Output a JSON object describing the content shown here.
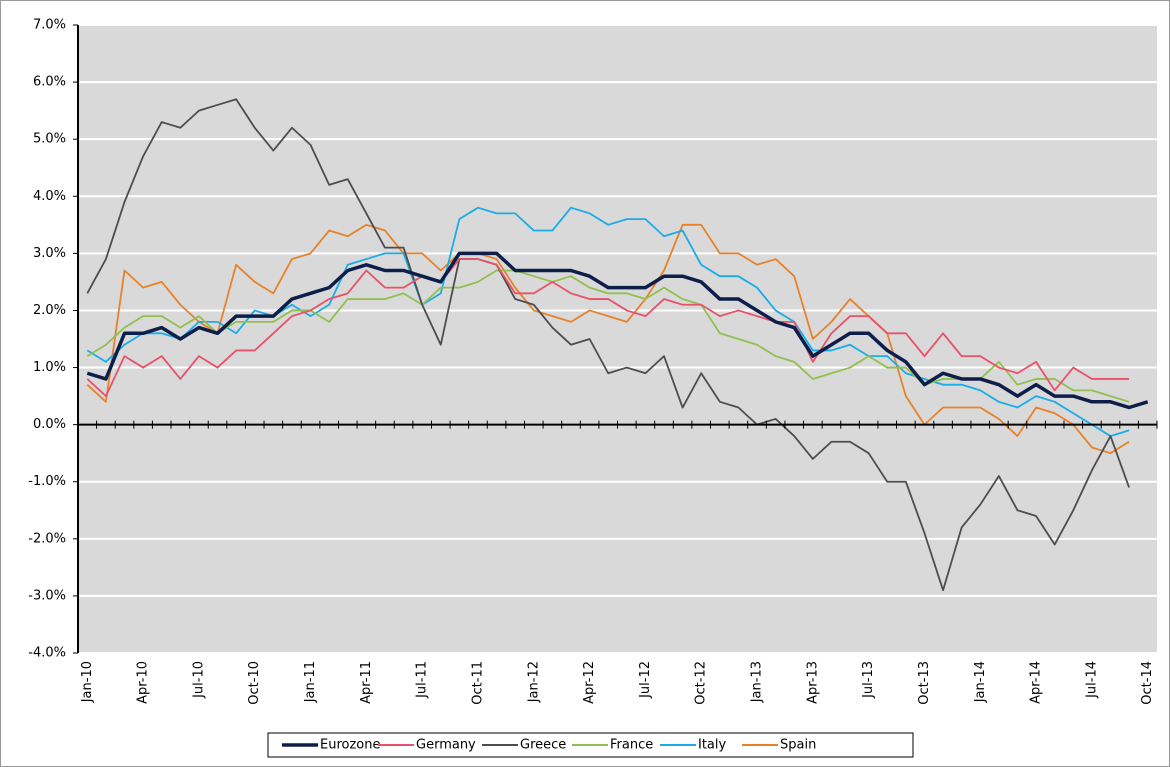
{
  "chart_data": {
    "type": "line",
    "categories": [
      "Jan-10",
      null,
      null,
      "Apr-10",
      null,
      null,
      "Jul-10",
      null,
      null,
      "Oct-10",
      null,
      null,
      "Jan-11",
      null,
      null,
      "Apr-11",
      null,
      null,
      "Jul-11",
      null,
      null,
      "Oct-11",
      null,
      null,
      "Jan-12",
      null,
      null,
      "Apr-12",
      null,
      null,
      "Jul-12",
      null,
      null,
      "Oct-12",
      null,
      null,
      "Jan-13",
      null,
      null,
      "Apr-13",
      null,
      null,
      "Jul-13",
      null,
      null,
      "Oct-13",
      null,
      null,
      "Jan-14",
      null,
      null,
      "Apr-14",
      null,
      null,
      "Jul-14",
      null,
      null,
      "Oct-14"
    ],
    "series": [
      {
        "name": "Eurozone",
        "color": "#0d1e4a",
        "values": [
          0.9,
          0.8,
          1.6,
          1.6,
          1.7,
          1.5,
          1.7,
          1.6,
          1.9,
          1.9,
          1.9,
          2.2,
          2.3,
          2.4,
          2.7,
          2.8,
          2.7,
          2.7,
          2.6,
          2.5,
          3.0,
          3.0,
          3.0,
          2.7,
          2.7,
          2.7,
          2.7,
          2.6,
          2.4,
          2.4,
          2.4,
          2.6,
          2.6,
          2.5,
          2.2,
          2.2,
          2.0,
          1.8,
          1.7,
          1.2,
          1.4,
          1.6,
          1.6,
          1.3,
          1.1,
          0.7,
          0.9,
          0.8,
          0.8,
          0.7,
          0.5,
          0.7,
          0.5,
          0.5,
          0.4,
          0.4,
          0.3,
          0.4
        ]
      },
      {
        "name": "Germany",
        "color": "#e8526a",
        "values": [
          0.8,
          0.5,
          1.2,
          1.0,
          1.2,
          0.8,
          1.2,
          1.0,
          1.3,
          1.3,
          1.6,
          1.9,
          2.0,
          2.2,
          2.3,
          2.7,
          2.4,
          2.4,
          2.6,
          2.5,
          2.9,
          2.9,
          2.8,
          2.3,
          2.3,
          2.5,
          2.3,
          2.2,
          2.2,
          2.0,
          1.9,
          2.2,
          2.1,
          2.1,
          1.9,
          2.0,
          1.9,
          1.8,
          1.8,
          1.1,
          1.6,
          1.9,
          1.9,
          1.6,
          1.6,
          1.2,
          1.6,
          1.2,
          1.2,
          1.0,
          0.9,
          1.1,
          0.6,
          1.0,
          0.8,
          0.8,
          0.8,
          null
        ]
      },
      {
        "name": "Greece",
        "color": "#4d4d4d",
        "values": [
          2.3,
          2.9,
          3.9,
          4.7,
          5.3,
          5.2,
          5.5,
          5.6,
          5.7,
          5.2,
          4.8,
          5.2,
          4.9,
          4.2,
          4.3,
          3.7,
          3.1,
          3.1,
          2.1,
          1.4,
          2.9,
          2.9,
          2.8,
          2.2,
          2.1,
          1.7,
          1.4,
          1.5,
          0.9,
          1.0,
          0.9,
          1.2,
          0.3,
          0.9,
          0.4,
          0.3,
          0.0,
          0.1,
          -0.2,
          -0.6,
          -0.3,
          -0.3,
          -0.5,
          -1.0,
          -1.0,
          -1.9,
          -2.9,
          -1.8,
          -1.4,
          -0.9,
          -1.5,
          -1.6,
          -2.1,
          -1.5,
          -0.8,
          -0.2,
          -1.1,
          null
        ]
      },
      {
        "name": "France",
        "color": "#92c050",
        "values": [
          1.2,
          1.4,
          1.7,
          1.9,
          1.9,
          1.7,
          1.9,
          1.6,
          1.8,
          1.8,
          1.8,
          2.0,
          2.0,
          1.8,
          2.2,
          2.2,
          2.2,
          2.3,
          2.1,
          2.4,
          2.4,
          2.5,
          2.7,
          2.7,
          2.6,
          2.5,
          2.6,
          2.4,
          2.3,
          2.3,
          2.2,
          2.4,
          2.2,
          2.1,
          1.6,
          1.5,
          1.4,
          1.2,
          1.1,
          0.8,
          0.9,
          1.0,
          1.2,
          1.0,
          1.0,
          0.7,
          0.8,
          0.8,
          0.8,
          1.1,
          0.7,
          0.8,
          0.8,
          0.6,
          0.6,
          0.5,
          0.4,
          null
        ]
      },
      {
        "name": "Italy",
        "color": "#1aace8",
        "values": [
          1.3,
          1.1,
          1.4,
          1.6,
          1.6,
          1.5,
          1.8,
          1.8,
          1.6,
          2.0,
          1.9,
          2.1,
          1.9,
          2.1,
          2.8,
          2.9,
          3.0,
          3.0,
          2.1,
          2.3,
          3.6,
          3.8,
          3.7,
          3.7,
          3.4,
          3.4,
          3.8,
          3.7,
          3.5,
          3.6,
          3.6,
          3.3,
          3.4,
          2.8,
          2.6,
          2.6,
          2.4,
          2.0,
          1.8,
          1.3,
          1.3,
          1.4,
          1.2,
          1.2,
          0.9,
          0.8,
          0.7,
          0.7,
          0.6,
          0.4,
          0.3,
          0.5,
          0.4,
          0.2,
          0.0,
          -0.2,
          -0.1,
          null
        ]
      },
      {
        "name": "Spain",
        "color": "#e8822a",
        "values": [
          0.7,
          0.4,
          2.7,
          2.4,
          2.5,
          2.1,
          1.8,
          1.6,
          2.8,
          2.5,
          2.3,
          2.9,
          3.0,
          3.4,
          3.3,
          3.5,
          3.4,
          3.0,
          3.0,
          2.7,
          3.0,
          3.0,
          2.9,
          2.4,
          2.0,
          1.9,
          1.8,
          2.0,
          1.9,
          1.8,
          2.2,
          2.7,
          3.5,
          3.5,
          3.0,
          3.0,
          2.8,
          2.9,
          2.6,
          1.5,
          1.8,
          2.2,
          1.9,
          1.6,
          0.5,
          0.0,
          0.3,
          0.3,
          0.3,
          0.1,
          -0.2,
          0.3,
          0.2,
          0.0,
          -0.4,
          -0.5,
          -0.3,
          null
        ]
      }
    ],
    "ylim": [
      -4,
      7
    ],
    "yticks": [
      {
        "value": -4,
        "label": "-4.0%"
      },
      {
        "value": -3,
        "label": "-3.0%"
      },
      {
        "value": -2,
        "label": "-2.0%"
      },
      {
        "value": -1,
        "label": "-1.0%"
      },
      {
        "value": 0,
        "label": "0.0%"
      },
      {
        "value": 1,
        "label": "1.0%"
      },
      {
        "value": 2,
        "label": "2.0%"
      },
      {
        "value": 3,
        "label": "3.0%"
      },
      {
        "value": 4,
        "label": "4.0%"
      },
      {
        "value": 5,
        "label": "5.0%"
      },
      {
        "value": 6,
        "label": "6.0%"
      },
      {
        "value": 7,
        "label": "7.0%"
      }
    ],
    "grid": true,
    "legend": "bottom"
  }
}
